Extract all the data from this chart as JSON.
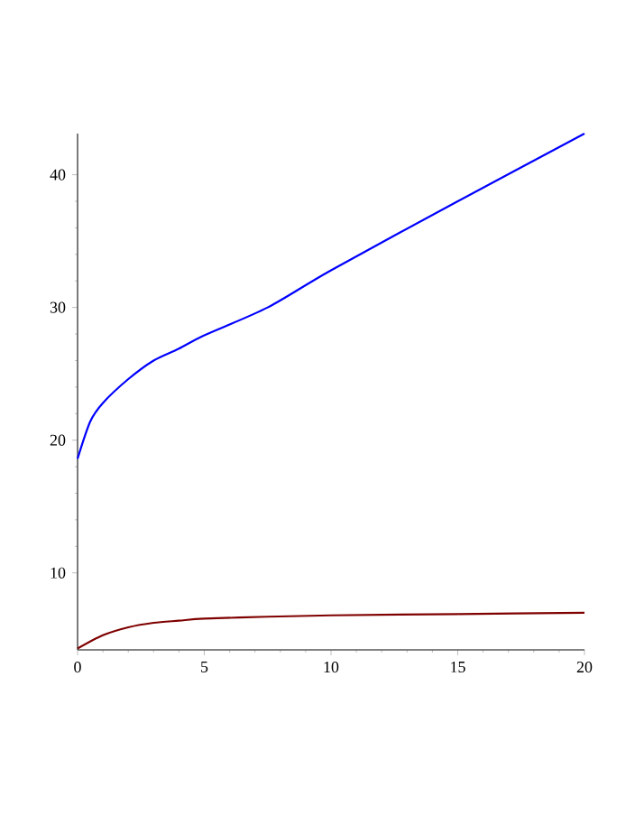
{
  "chart_data": {
    "type": "line",
    "xlim": [
      0,
      20
    ],
    "ylim": [
      4.2,
      43.1
    ],
    "xticks": [
      0,
      5,
      10,
      15,
      20
    ],
    "yticks": [
      10,
      20,
      30,
      40
    ],
    "grid": false,
    "series": [
      {
        "color": "#0000ff",
        "x": [
          0,
          0.5,
          1,
          2,
          3,
          4,
          5,
          7.5,
          10,
          15,
          20
        ],
        "values": [
          18.6,
          21.4,
          22.8,
          24.6,
          26.0,
          26.9,
          27.9,
          30.0,
          32.8,
          38.0,
          43.1
        ]
      },
      {
        "color": "#7f0000",
        "x": [
          0,
          1,
          2,
          3,
          4,
          5,
          7.5,
          10,
          15,
          20
        ],
        "values": [
          4.3,
          5.3,
          5.9,
          6.24,
          6.4,
          6.55,
          6.7,
          6.8,
          6.9,
          7.0
        ]
      }
    ]
  }
}
